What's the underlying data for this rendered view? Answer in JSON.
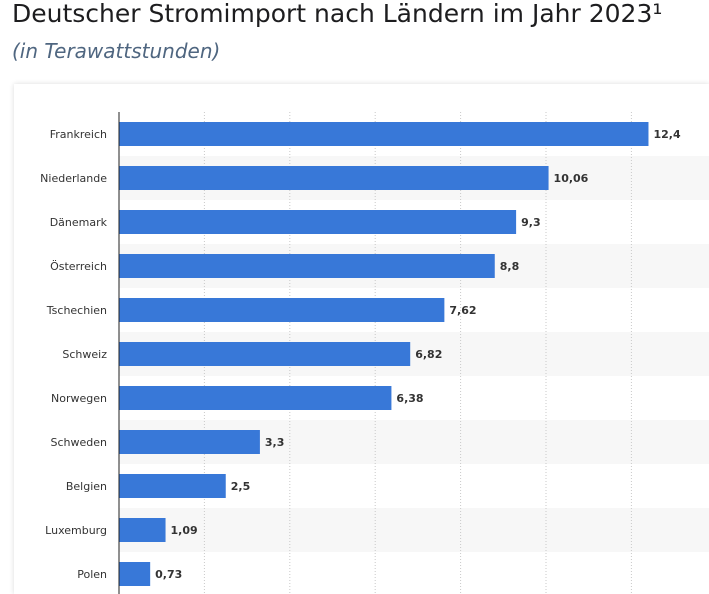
{
  "header": {
    "title": "Deutscher Stromimport nach Ländern im Jahr 2023¹",
    "subtitle": "(in Terawattstunden)"
  },
  "colors": {
    "bar": "#3878d8",
    "band": "#f7f7f7",
    "grid": "#c9c9c9",
    "axis": "#222222"
  },
  "chart_data": {
    "type": "bar",
    "orientation": "horizontal",
    "categories": [
      "Frankreich",
      "Niederlande",
      "Dänemark",
      "Österreich",
      "Tschechien",
      "Schweiz",
      "Norwegen",
      "Schweden",
      "Belgien",
      "Luxemburg",
      "Polen"
    ],
    "values": [
      12.4,
      10.06,
      9.3,
      8.8,
      7.62,
      6.82,
      6.38,
      3.3,
      2.5,
      1.09,
      0.73
    ],
    "value_labels": [
      "12,4",
      "10,06",
      "9,3",
      "8,8",
      "7,62",
      "6,82",
      "6,38",
      "3,3",
      "2,5",
      "1,09",
      "0,73"
    ],
    "xlim": [
      0,
      14
    ],
    "grid": true
  }
}
